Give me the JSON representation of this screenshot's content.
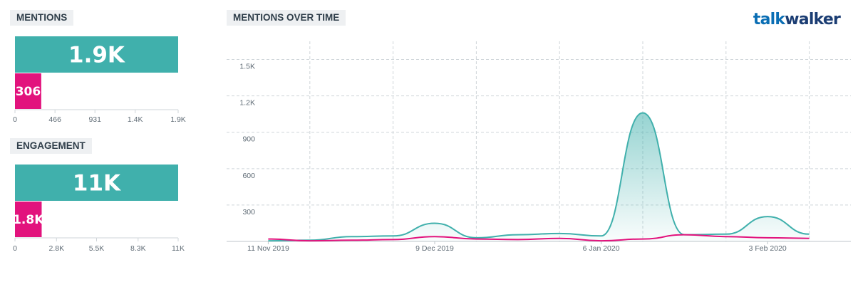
{
  "brand": {
    "logo_part1": "talk",
    "logo_part2": "walker"
  },
  "colors": {
    "teal": "#40b0ac",
    "pink": "#e2137d",
    "grid": "#cfd5d9"
  },
  "mentions_section": {
    "title": "MENTIONS"
  },
  "engagement_section": {
    "title": "ENGAGEMENT"
  },
  "timeline_section": {
    "title": "MENTIONS OVER TIME"
  },
  "chart_data": [
    {
      "id": "mentions",
      "type": "bar",
      "orientation": "horizontal",
      "title": "MENTIONS",
      "values": [
        1900,
        306
      ],
      "value_labels": [
        "1.9K",
        "306"
      ],
      "colors": [
        "#40b0ac",
        "#e2137d"
      ],
      "xlim": [
        0,
        1900
      ],
      "ticks": [
        0,
        466,
        931,
        1400,
        1900
      ],
      "tick_labels": [
        "0",
        "466",
        "931",
        "1.4K",
        "1.9K"
      ]
    },
    {
      "id": "engagement",
      "type": "bar",
      "orientation": "horizontal",
      "title": "ENGAGEMENT",
      "values": [
        11000,
        1800
      ],
      "value_labels": [
        "11K",
        "1.8K"
      ],
      "colors": [
        "#40b0ac",
        "#e2137d"
      ],
      "xlim": [
        0,
        11000
      ],
      "ticks": [
        0,
        2800,
        5500,
        8300,
        11000
      ],
      "tick_labels": [
        "0",
        "2.8K",
        "5.5K",
        "8.3K",
        "11K"
      ]
    },
    {
      "id": "timeline",
      "type": "area",
      "title": "MENTIONS OVER TIME",
      "x": [
        "2019-11-11",
        "2019-11-18",
        "2019-11-25",
        "2019-12-02",
        "2019-12-09",
        "2019-12-16",
        "2019-12-23",
        "2019-12-30",
        "2020-01-06",
        "2020-01-13",
        "2020-01-20",
        "2020-01-27",
        "2020-02-03",
        "2020-02-10"
      ],
      "series": [
        {
          "color": "#40b0ac",
          "filled": true,
          "values": [
            5,
            10,
            40,
            45,
            150,
            30,
            55,
            65,
            45,
            1060,
            55,
            60,
            205,
            60
          ]
        },
        {
          "color": "#e2137d",
          "filled": false,
          "values": [
            20,
            5,
            10,
            15,
            40,
            20,
            15,
            25,
            5,
            20,
            55,
            40,
            30,
            25
          ]
        }
      ],
      "ylim": [
        0,
        1650
      ],
      "yticks": [
        300,
        600,
        900,
        1200,
        1500
      ],
      "ytick_labels": [
        "300",
        "600",
        "900",
        "1.2K",
        "1.5K"
      ],
      "xtick_dates": [
        "2019-11-11",
        "2019-12-09",
        "2020-01-06",
        "2020-02-03"
      ],
      "xtick_labels": [
        "11 Nov 2019",
        "9 Dec 2019",
        "6 Jan 2020",
        "3 Feb 2020"
      ],
      "grid": true
    }
  ]
}
